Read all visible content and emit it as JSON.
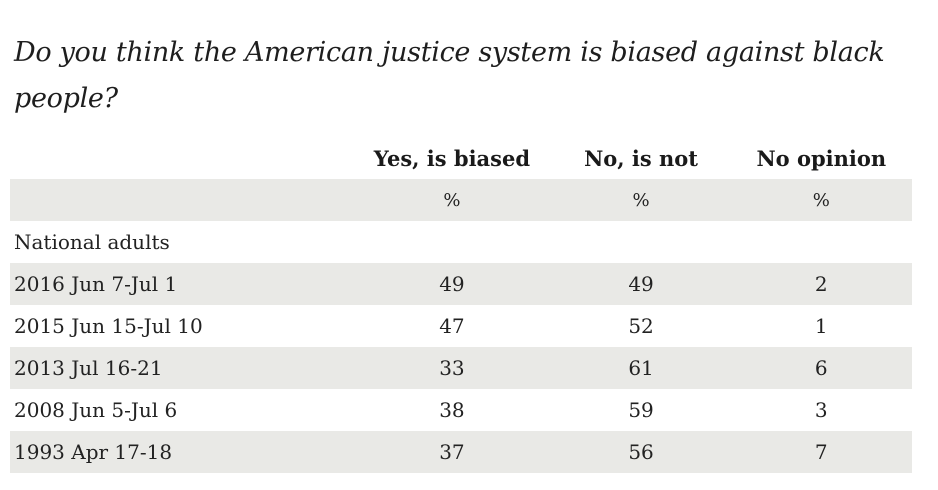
{
  "question": "Do you think the American justice system is biased against black people?",
  "chart_data": {
    "type": "table",
    "columns": [
      "Yes, is biased",
      "No, is not",
      "No opinion"
    ],
    "units": [
      "%",
      "%",
      "%"
    ],
    "group_label": "National adults",
    "rows": [
      {
        "label": "2016 Jun 7-Jul 1",
        "values": [
          49,
          49,
          2
        ]
      },
      {
        "label": "2015 Jun 15-Jul 10",
        "values": [
          47,
          52,
          1
        ]
      },
      {
        "label": "2013 Jul 16-21",
        "values": [
          33,
          61,
          6
        ]
      },
      {
        "label": "2008 Jun 5-Jul 6",
        "values": [
          38,
          59,
          3
        ]
      },
      {
        "label": "1993 Apr 17-18",
        "values": [
          37,
          56,
          7
        ]
      }
    ]
  },
  "colors": {
    "shade": "#e9e9e6",
    "text": "#222222"
  }
}
